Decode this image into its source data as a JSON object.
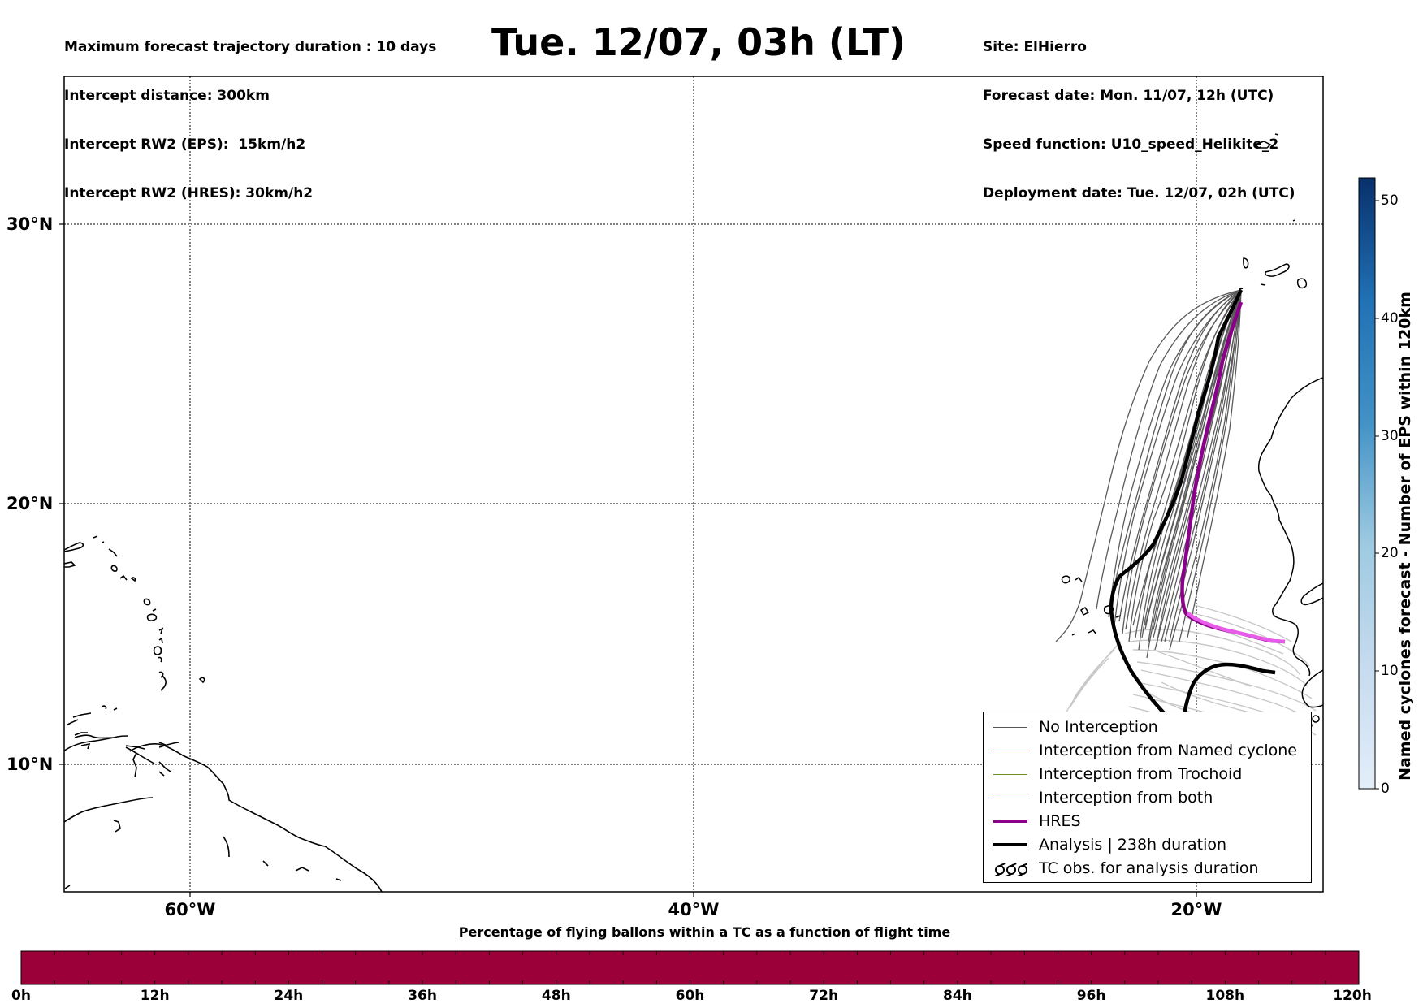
{
  "header": {
    "left_lines": [
      "Maximum forecast trajectory duration : 10 days",
      "Intercept distance: 300km",
      "Intercept RW2 (EPS):  15km/h2",
      "Intercept RW2 (HRES): 30km/h2"
    ],
    "title": "Tue. 12/07, 03h (LT)",
    "right_lines": [
      "Site: ElHierro",
      "Forecast date: Mon. 11/07, 12h (UTC)",
      "Speed function: U10_speed_Helikite_2",
      "Deployment date: Tue. 12/07, 02h (UTC)"
    ]
  },
  "map": {
    "lat_labels": [
      "30°N",
      "20°N",
      "10°N"
    ],
    "lon_labels": [
      "60°W",
      "40°W",
      "20°W"
    ],
    "grid": true
  },
  "legend": {
    "items": [
      {
        "label": "No Interception",
        "color": "#555555",
        "style": "thin-line"
      },
      {
        "label": "Interception from Named cyclone",
        "color": "#e4571d",
        "style": "thin-line"
      },
      {
        "label": "Interception from Trochoid",
        "color": "#6b8e23",
        "style": "thin-line"
      },
      {
        "label": "Interception from both",
        "color": "#228b22",
        "style": "thin-line"
      },
      {
        "label": "HRES",
        "color": "#8b008b",
        "style": "thick-line"
      },
      {
        "label": "Analysis | 238h duration",
        "color": "#000000",
        "style": "thick-line"
      },
      {
        "label": "TC obs. for analysis duration",
        "color": "#000000",
        "style": "cyclone-symbols"
      }
    ]
  },
  "colorbar_right": {
    "label": "Named cyclones forecast - Number of EPS within 120km",
    "ticks": [
      "0",
      "10",
      "20",
      "30",
      "40",
      "50"
    ],
    "range": [
      0,
      52
    ],
    "color_low": "#e3eef9",
    "color_high": "#08306b"
  },
  "colorbar_bottom": {
    "title": "Percentage of flying ballons within a TC as a function of flight time",
    "ticks": [
      "0h",
      "12h",
      "24h",
      "36h",
      "48h",
      "60h",
      "72h",
      "84h",
      "96h",
      "108h",
      "120h"
    ],
    "fill_color": "#9b0038"
  }
}
